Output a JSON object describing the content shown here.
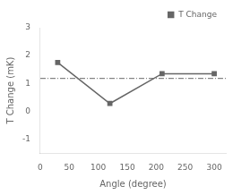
{
  "chart_data": {
    "type": "line",
    "x": [
      30,
      120,
      210,
      300
    ],
    "series": [
      {
        "name": "T Change",
        "color": "#666666",
        "marker": "square",
        "values": [
          1.75,
          0.28,
          1.35,
          1.35
        ]
      }
    ],
    "hline": {
      "y": 1.18,
      "color": "#666666",
      "line_style": "dashdot"
    },
    "xlabel": "Angle (degree)",
    "ylabel": "T Change (mK)",
    "xlim": [
      0,
      320
    ],
    "ylim": [
      -1.5,
      3.0
    ],
    "xticks": [
      0,
      50,
      100,
      150,
      200,
      250,
      300
    ],
    "yticks": [
      -1,
      0,
      1,
      2,
      3
    ],
    "grid": false,
    "legend": "upper right"
  }
}
